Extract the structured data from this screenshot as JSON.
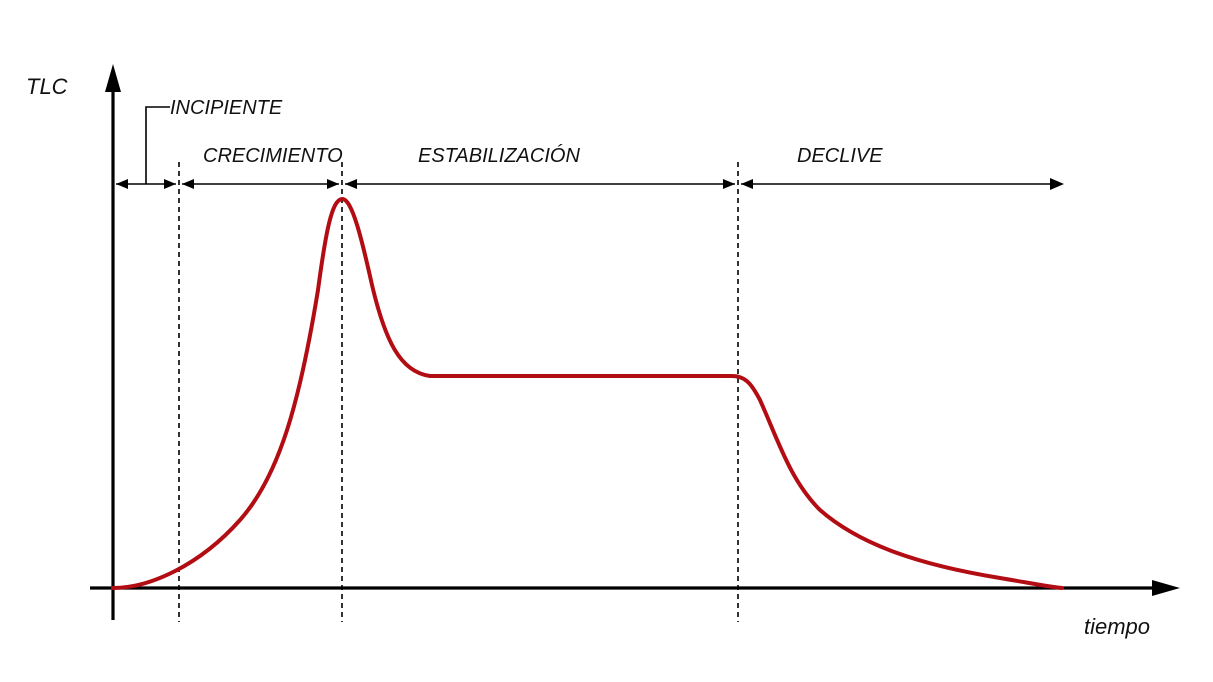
{
  "axes": {
    "y_label": "TLC",
    "x_label": "tiempo"
  },
  "phases": {
    "incipiente": "INCIPIENTE",
    "crecimiento": "CRECIMIENTO",
    "estabilizacion": "ESTABILIZACIÓN",
    "declive": "DECLIVE"
  },
  "colors": {
    "curve": "#b30d14",
    "ink": "#000000"
  }
}
